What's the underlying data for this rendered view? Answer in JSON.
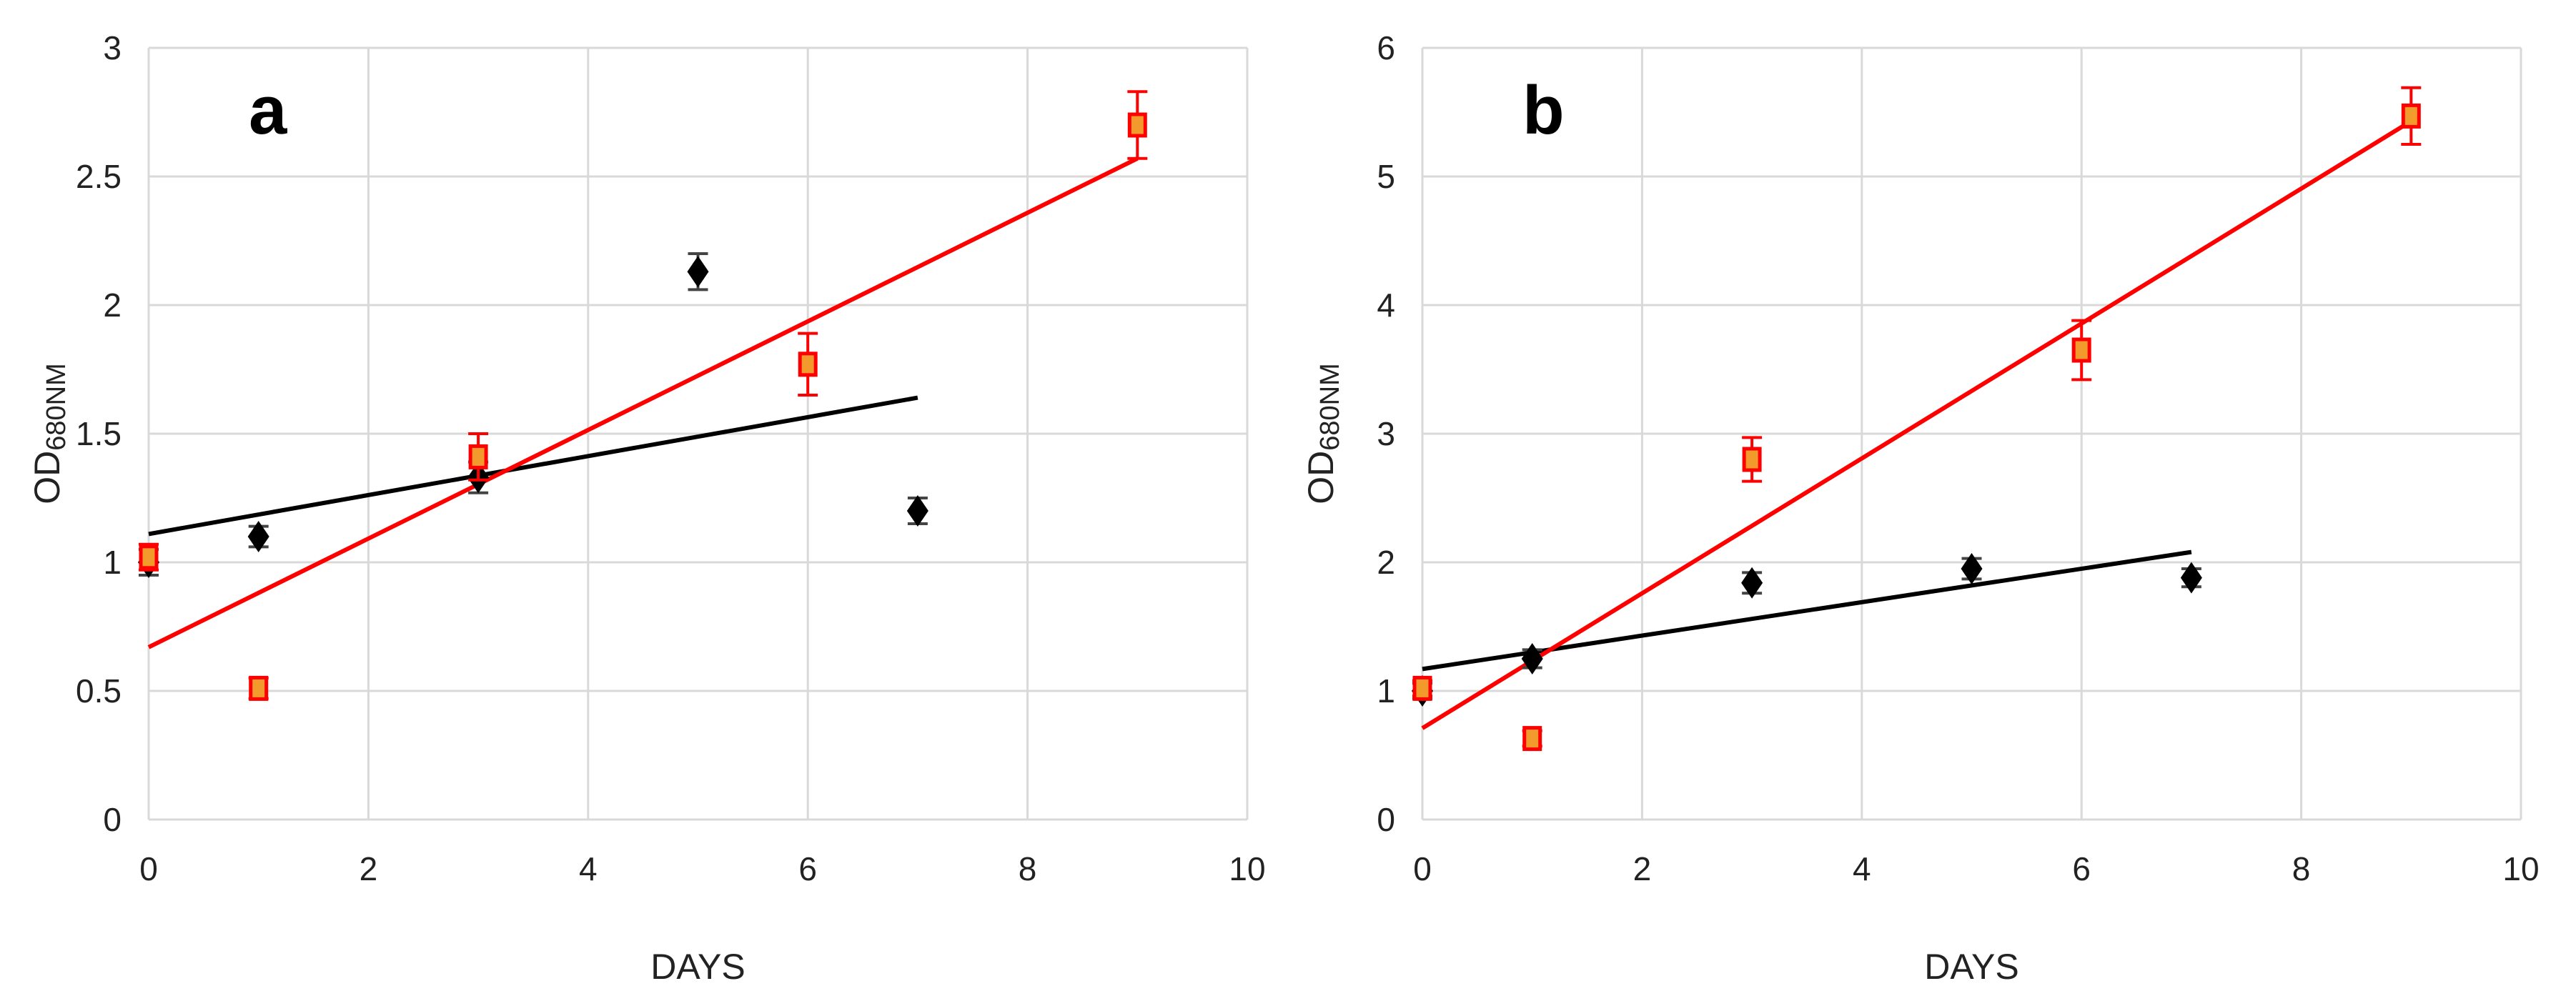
{
  "chart_data": [
    {
      "type": "scatter",
      "panel_label": "a",
      "xlabel": "DAYS",
      "ylabel": "OD",
      "ylabel_sub": "680NM",
      "xlim": [
        0,
        10
      ],
      "ylim": [
        0,
        3
      ],
      "xticks": [
        0,
        2,
        4,
        6,
        8,
        10
      ],
      "yticks": [
        0,
        0.5,
        1,
        1.5,
        2,
        2.5,
        3
      ],
      "grid": true,
      "legend": "none",
      "series": [
        {
          "marker": "diamond",
          "color": "#000000",
          "points": [
            {
              "x": 0,
              "y": 1.0,
              "err": 0.05
            },
            {
              "x": 1,
              "y": 1.1,
              "err": 0.04
            },
            {
              "x": 3,
              "y": 1.33,
              "err": 0.06
            },
            {
              "x": 5,
              "y": 2.13,
              "err": 0.07
            },
            {
              "x": 7,
              "y": 1.2,
              "err": 0.05
            }
          ],
          "trendline": {
            "x0": 0,
            "y0": 1.11,
            "x1": 7,
            "y1": 1.64,
            "color": "#000000"
          }
        },
        {
          "marker": "square",
          "color": "#ff0000",
          "fill": "#f39a2c",
          "points": [
            {
              "x": 0,
              "y": 1.02,
              "err": 0.05
            },
            {
              "x": 1,
              "y": 0.51,
              "err": 0.04
            },
            {
              "x": 3,
              "y": 1.41,
              "err": 0.09
            },
            {
              "x": 6,
              "y": 1.77,
              "err": 0.12
            },
            {
              "x": 9,
              "y": 2.7,
              "err": 0.13
            }
          ],
          "trendline": {
            "x0": 0,
            "y0": 0.67,
            "x1": 9,
            "y1": 2.57,
            "color": "#ff0000"
          }
        }
      ]
    },
    {
      "type": "scatter",
      "panel_label": "b",
      "xlabel": "DAYS",
      "ylabel": "OD",
      "ylabel_sub": "680NM",
      "xlim": [
        0,
        10
      ],
      "ylim": [
        0,
        6
      ],
      "xticks": [
        0,
        2,
        4,
        6,
        8,
        10
      ],
      "yticks": [
        0,
        1,
        2,
        3,
        4,
        5,
        6
      ],
      "grid": true,
      "legend": "none",
      "series": [
        {
          "marker": "diamond",
          "color": "#000000",
          "points": [
            {
              "x": 0,
              "y": 1.0,
              "err": 0.06
            },
            {
              "x": 1,
              "y": 1.25,
              "err": 0.07
            },
            {
              "x": 3,
              "y": 1.84,
              "err": 0.08
            },
            {
              "x": 5,
              "y": 1.95,
              "err": 0.08
            },
            {
              "x": 7,
              "y": 1.88,
              "err": 0.07
            }
          ],
          "trendline": {
            "x0": 0,
            "y0": 1.17,
            "x1": 7,
            "y1": 2.08,
            "color": "#000000"
          }
        },
        {
          "marker": "square",
          "color": "#ff0000",
          "fill": "#f39a2c",
          "points": [
            {
              "x": 0,
              "y": 1.02,
              "err": 0.06
            },
            {
              "x": 1,
              "y": 0.63,
              "err": 0.06
            },
            {
              "x": 3,
              "y": 2.8,
              "err": 0.17
            },
            {
              "x": 6,
              "y": 3.65,
              "err": 0.23
            },
            {
              "x": 9,
              "y": 5.47,
              "err": 0.22
            }
          ],
          "trendline": {
            "x0": 0,
            "y0": 0.71,
            "x1": 9,
            "y1": 5.43,
            "color": "#ff0000"
          }
        }
      ]
    }
  ]
}
